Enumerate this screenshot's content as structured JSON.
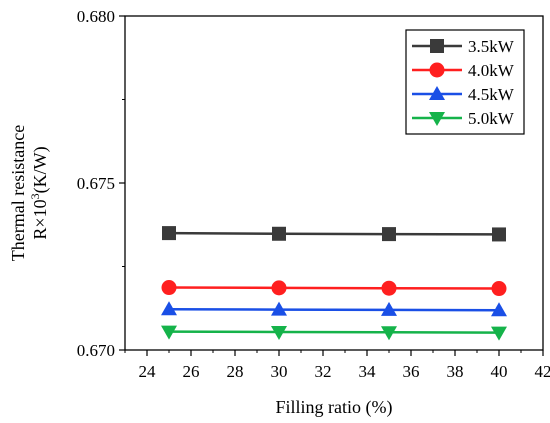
{
  "chart_data": {
    "type": "line",
    "xlabel": "Filling ratio (%)",
    "ylabel_line1": "Thermal resistance",
    "ylabel_line2_base": "R×10",
    "ylabel_line2_sup": "3",
    "ylabel_line2_unit": "(K/W)",
    "xlim": [
      23,
      42
    ],
    "ylim": [
      0.67,
      0.68
    ],
    "x_ticks": [
      24,
      26,
      28,
      30,
      32,
      34,
      36,
      38,
      40,
      42
    ],
    "y_ticks": [
      0.67,
      0.675,
      0.68
    ],
    "y_tick_labels": [
      "0.670",
      "0.675",
      "0.680"
    ],
    "grid": false,
    "legend_position": "top-right",
    "x": [
      25,
      30,
      35,
      40
    ],
    "series": [
      {
        "name": "3.5kW",
        "values": [
          0.6735,
          0.67348,
          0.67347,
          0.67346
        ],
        "color": "#3a3a3a",
        "marker": "square"
      },
      {
        "name": "4.0kW",
        "values": [
          0.67187,
          0.67186,
          0.67185,
          0.67184
        ],
        "color": "#ff1f1f",
        "marker": "circle"
      },
      {
        "name": "4.5kW",
        "values": [
          0.67122,
          0.67121,
          0.6712,
          0.67119
        ],
        "color": "#1a4fe6",
        "marker": "triangle-up"
      },
      {
        "name": "5.0kW",
        "values": [
          0.67055,
          0.67054,
          0.67053,
          0.67052
        ],
        "color": "#15b34a",
        "marker": "triangle-down"
      }
    ]
  }
}
